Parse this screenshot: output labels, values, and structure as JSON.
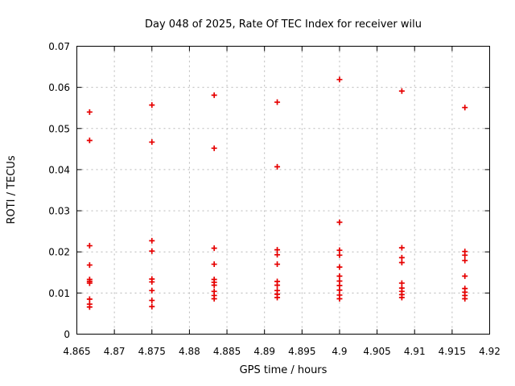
{
  "title": "Day 048 of 2025, Rate Of TEC Index for receiver wilu",
  "chart_data": {
    "type": "scatter",
    "title": "Day 048 of 2025, Rate Of TEC Index for receiver wilu",
    "xlabel": "GPS time / hours",
    "ylabel": "ROTI / TECUs",
    "xlim": [
      4.865,
      4.92
    ],
    "ylim": [
      0,
      0.07
    ],
    "x_ticks": [
      4.865,
      4.87,
      4.875,
      4.88,
      4.885,
      4.89,
      4.895,
      4.9,
      4.905,
      4.91,
      4.915,
      4.92
    ],
    "x_tick_labels": [
      "4.865",
      "4.87",
      "4.875",
      "4.88",
      "4.885",
      "4.89",
      "4.895",
      "4.9",
      "4.905",
      "4.91",
      "4.915",
      "4.92"
    ],
    "y_ticks": [
      0,
      0.01,
      0.02,
      0.03,
      0.04,
      0.05,
      0.06,
      0.07
    ],
    "y_tick_labels": [
      "0",
      "0.01",
      "0.02",
      "0.03",
      "0.04",
      "0.05",
      "0.06",
      "0.07"
    ],
    "grid": true,
    "grid_color": "#b8b8b8",
    "axis_color": "#000000",
    "marker": "plus",
    "marker_color": "#e60000",
    "legend": "none",
    "series": [
      {
        "name": "ROTI",
        "points": [
          [
            4.8667,
            0.054
          ],
          [
            4.8667,
            0.0471
          ],
          [
            4.8667,
            0.0215
          ],
          [
            4.8667,
            0.0168
          ],
          [
            4.8667,
            0.0133
          ],
          [
            4.8667,
            0.0128
          ],
          [
            4.8667,
            0.0124
          ],
          [
            4.8667,
            0.0085
          ],
          [
            4.8667,
            0.0073
          ],
          [
            4.8667,
            0.0066
          ],
          [
            4.875,
            0.0557
          ],
          [
            4.875,
            0.0467
          ],
          [
            4.875,
            0.0227
          ],
          [
            4.875,
            0.0202
          ],
          [
            4.875,
            0.0134
          ],
          [
            4.875,
            0.0127
          ],
          [
            4.875,
            0.0106
          ],
          [
            4.875,
            0.0082
          ],
          [
            4.875,
            0.0067
          ],
          [
            4.8833,
            0.0581
          ],
          [
            4.8833,
            0.0452
          ],
          [
            4.8833,
            0.0209
          ],
          [
            4.8833,
            0.017
          ],
          [
            4.8833,
            0.0133
          ],
          [
            4.8833,
            0.0126
          ],
          [
            4.8833,
            0.0119
          ],
          [
            4.8833,
            0.0104
          ],
          [
            4.8833,
            0.0094
          ],
          [
            4.8833,
            0.0086
          ],
          [
            4.8917,
            0.0564
          ],
          [
            4.8917,
            0.0407
          ],
          [
            4.8917,
            0.0205
          ],
          [
            4.8917,
            0.0193
          ],
          [
            4.8917,
            0.017
          ],
          [
            4.8917,
            0.0128
          ],
          [
            4.8917,
            0.0119
          ],
          [
            4.8917,
            0.0106
          ],
          [
            4.8917,
            0.0097
          ],
          [
            4.8917,
            0.0089
          ],
          [
            4.9,
            0.0619
          ],
          [
            4.9,
            0.0272
          ],
          [
            4.9,
            0.0204
          ],
          [
            4.9,
            0.0192
          ],
          [
            4.9,
            0.0163
          ],
          [
            4.9,
            0.0141
          ],
          [
            4.9,
            0.0129
          ],
          [
            4.9,
            0.0118
          ],
          [
            4.9,
            0.0107
          ],
          [
            4.9,
            0.0095
          ],
          [
            4.9,
            0.0086
          ],
          [
            4.9083,
            0.0591
          ],
          [
            4.9083,
            0.021
          ],
          [
            4.9083,
            0.0186
          ],
          [
            4.9083,
            0.0174
          ],
          [
            4.9083,
            0.0124
          ],
          [
            4.9083,
            0.0112
          ],
          [
            4.9083,
            0.0104
          ],
          [
            4.9083,
            0.0096
          ],
          [
            4.9083,
            0.0089
          ],
          [
            4.9167,
            0.0551
          ],
          [
            4.9167,
            0.0201
          ],
          [
            4.9167,
            0.0192
          ],
          [
            4.9167,
            0.0179
          ],
          [
            4.9167,
            0.0141
          ],
          [
            4.9167,
            0.0111
          ],
          [
            4.9167,
            0.0102
          ],
          [
            4.9167,
            0.0094
          ],
          [
            4.9167,
            0.0086
          ]
        ]
      }
    ]
  }
}
